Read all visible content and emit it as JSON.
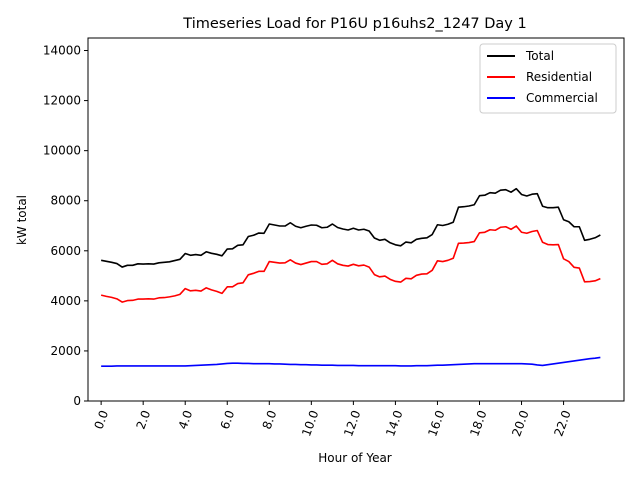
{
  "chart_data": {
    "type": "line",
    "title": "Timeseries Load for P16U p16uhs2_1247  Day 1",
    "xlabel": "Hour of Year",
    "ylabel": "kW total",
    "xlim": [
      -0.625,
      24.875
    ],
    "ylim": [
      0,
      14500
    ],
    "xticks": [
      0,
      2,
      4,
      6,
      8,
      10,
      12,
      14,
      16,
      18,
      20,
      22
    ],
    "xtick_labels": [
      "0.0",
      "2.0",
      "4.0",
      "6.0",
      "8.0",
      "10.0",
      "12.0",
      "14.0",
      "16.0",
      "18.0",
      "20.0",
      "22.0"
    ],
    "yticks": [
      0,
      2000,
      4000,
      6000,
      8000,
      10000,
      12000,
      14000
    ],
    "ytick_labels": [
      "0",
      "2000",
      "4000",
      "6000",
      "8000",
      "10000",
      "12000",
      "14000"
    ],
    "legend_position": "top-right",
    "x": [
      0,
      0.25,
      0.5,
      0.75,
      1,
      1.25,
      1.5,
      1.75,
      2,
      2.25,
      2.5,
      2.75,
      3,
      3.25,
      3.5,
      3.75,
      4,
      4.25,
      4.5,
      4.75,
      5,
      5.25,
      5.5,
      5.75,
      6,
      6.25,
      6.5,
      6.75,
      7,
      7.25,
      7.5,
      7.75,
      8,
      8.25,
      8.5,
      8.75,
      9,
      9.25,
      9.5,
      9.75,
      10,
      10.25,
      10.5,
      10.75,
      11,
      11.25,
      11.5,
      11.75,
      12,
      12.25,
      12.5,
      12.75,
      13,
      13.25,
      13.5,
      13.75,
      14,
      14.25,
      14.5,
      14.75,
      15,
      15.25,
      15.5,
      15.75,
      16,
      16.25,
      16.5,
      16.75,
      17,
      17.25,
      17.5,
      17.75,
      18,
      18.25,
      18.5,
      18.75,
      19,
      19.25,
      19.5,
      19.75,
      20,
      20.25,
      20.5,
      20.75,
      21,
      21.25,
      21.5,
      21.75,
      22,
      22.25,
      22.5,
      22.75,
      23,
      23.25,
      23.5,
      23.75
    ],
    "series": [
      {
        "name": "Total",
        "color": "#000000",
        "values": [
          5620,
          5580,
          5540,
          5490,
          5350,
          5420,
          5420,
          5480,
          5470,
          5480,
          5470,
          5520,
          5540,
          5560,
          5610,
          5660,
          5890,
          5820,
          5850,
          5820,
          5960,
          5900,
          5860,
          5800,
          6070,
          6080,
          6220,
          6240,
          6570,
          6620,
          6710,
          6700,
          7070,
          7030,
          6990,
          6990,
          7120,
          6980,
          6920,
          6980,
          7030,
          7020,
          6920,
          6940,
          7070,
          6930,
          6870,
          6830,
          6900,
          6830,
          6860,
          6790,
          6510,
          6420,
          6460,
          6320,
          6240,
          6200,
          6350,
          6320,
          6460,
          6500,
          6520,
          6650,
          7040,
          7010,
          7060,
          7140,
          7740,
          7760,
          7790,
          7840,
          8200,
          8220,
          8320,
          8300,
          8420,
          8440,
          8340,
          8480,
          8250,
          8190,
          8260,
          8280,
          7780,
          7720,
          7720,
          7740,
          7240,
          7160,
          6960,
          6960,
          6420,
          6460,
          6520,
          6630
        ]
      },
      {
        "name": "Residential",
        "color": "#ff0000",
        "values": [
          4230,
          4180,
          4140,
          4080,
          3950,
          4010,
          4020,
          4070,
          4070,
          4080,
          4070,
          4120,
          4130,
          4160,
          4200,
          4260,
          4490,
          4400,
          4420,
          4390,
          4520,
          4440,
          4380,
          4300,
          4560,
          4560,
          4690,
          4720,
          5040,
          5100,
          5180,
          5180,
          5570,
          5540,
          5510,
          5520,
          5640,
          5510,
          5450,
          5510,
          5570,
          5570,
          5460,
          5480,
          5620,
          5480,
          5420,
          5390,
          5460,
          5400,
          5430,
          5350,
          5050,
          4960,
          4990,
          4860,
          4780,
          4750,
          4900,
          4880,
          5020,
          5070,
          5080,
          5220,
          5600,
          5570,
          5620,
          5700,
          6300,
          6310,
          6330,
          6370,
          6720,
          6740,
          6840,
          6820,
          6940,
          6960,
          6860,
          6990,
          6740,
          6700,
          6770,
          6810,
          6340,
          6250,
          6240,
          6250,
          5680,
          5570,
          5340,
          5310,
          4760,
          4770,
          4800,
          4890
        ]
      },
      {
        "name": "Commercial",
        "color": "#0000ff",
        "values": [
          1390,
          1390,
          1390,
          1400,
          1400,
          1400,
          1400,
          1400,
          1400,
          1400,
          1400,
          1400,
          1400,
          1400,
          1400,
          1400,
          1400,
          1410,
          1420,
          1430,
          1440,
          1450,
          1460,
          1480,
          1500,
          1510,
          1510,
          1500,
          1500,
          1490,
          1490,
          1490,
          1490,
          1480,
          1480,
          1470,
          1460,
          1460,
          1450,
          1450,
          1440,
          1440,
          1430,
          1430,
          1430,
          1420,
          1420,
          1420,
          1420,
          1410,
          1410,
          1410,
          1410,
          1410,
          1410,
          1410,
          1410,
          1400,
          1400,
          1400,
          1410,
          1410,
          1410,
          1420,
          1430,
          1430,
          1440,
          1450,
          1460,
          1470,
          1480,
          1490,
          1490,
          1490,
          1490,
          1490,
          1490,
          1490,
          1490,
          1490,
          1490,
          1480,
          1470,
          1440,
          1420,
          1450,
          1480,
          1510,
          1540,
          1570,
          1600,
          1630,
          1660,
          1690,
          1710,
          1740
        ]
      }
    ]
  }
}
